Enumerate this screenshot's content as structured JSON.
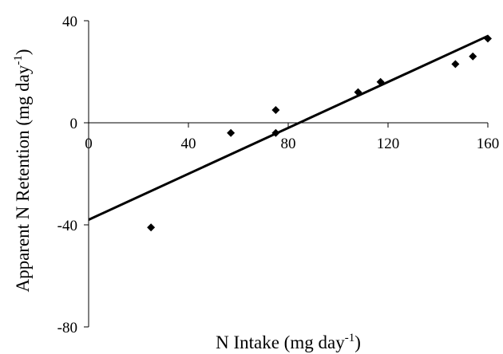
{
  "chart_data": {
    "type": "scatter",
    "xlabel": {
      "text": "N Intake (mg day",
      "sup": "-1",
      "close": ")"
    },
    "ylabel": {
      "text": "Apparent N Retention (mg day",
      "sup": "-1",
      "close": ")"
    },
    "xlim": [
      0,
      160
    ],
    "ylim": [
      -80,
      40
    ],
    "xticks": [
      0,
      40,
      80,
      120,
      160
    ],
    "yticks": [
      40,
      0,
      -40,
      -80
    ],
    "grid": false,
    "points": [
      {
        "x": 25,
        "y": -41
      },
      {
        "x": 57,
        "y": -4
      },
      {
        "x": 75,
        "y": 5
      },
      {
        "x": 75,
        "y": -4
      },
      {
        "x": 108,
        "y": 12
      },
      {
        "x": 117,
        "y": 16
      },
      {
        "x": 147,
        "y": 23
      },
      {
        "x": 154,
        "y": 26
      },
      {
        "x": 160,
        "y": 33
      }
    ],
    "trendline": {
      "x": [
        0,
        160
      ],
      "y": [
        -38,
        34
      ]
    }
  }
}
